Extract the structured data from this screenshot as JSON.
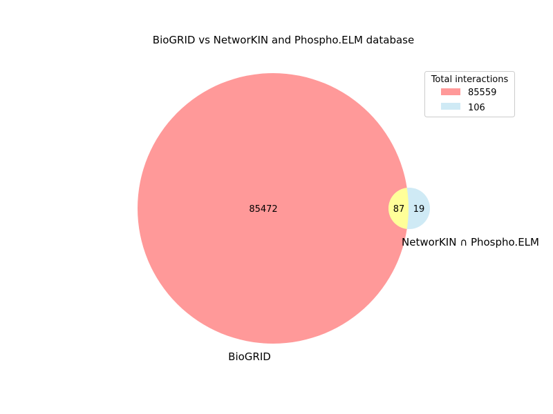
{
  "chart_data": {
    "type": "venn",
    "title": "BioGRID vs NetworKIN and Phospho.ELM database",
    "sets": [
      {
        "name": "BioGRID",
        "total": 85559,
        "color": "#ff9999"
      },
      {
        "name": "NetworKIN ∩ Phospho.ELM",
        "total": 106,
        "color": "#cfeaf5"
      }
    ],
    "regions": {
      "only_a": "85472",
      "intersection": "87",
      "only_b": "19"
    },
    "intersection_color": "#ffff99",
    "legend": {
      "title": "Total interactions",
      "position": "top-right",
      "entries": [
        {
          "label": "85559",
          "color": "#ff9999"
        },
        {
          "label": "106",
          "color": "#cfeaf5"
        }
      ]
    }
  }
}
